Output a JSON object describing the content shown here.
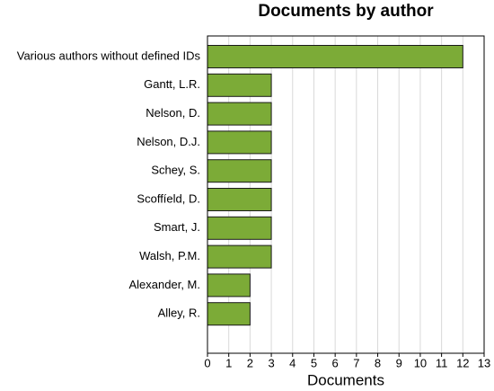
{
  "chart_data": {
    "type": "bar",
    "orientation": "horizontal",
    "title": "Documents by author",
    "x_label": "Documents",
    "categories": [
      "Various authors without defined IDs",
      "Gantt, L.R.",
      "Nelson, D.",
      "Nelson, D.J.",
      "Schey, S.",
      "Scoffíeld, D.",
      "Smart, J.",
      "Walsh, P.M.",
      "Alexander, M.",
      "Alley, R."
    ],
    "values": [
      12,
      3,
      3,
      3,
      3,
      3,
      3,
      3,
      2,
      2
    ],
    "color": "#7cab37",
    "xlim": [
      0,
      13
    ],
    "xticks": [
      0,
      1,
      2,
      3,
      4,
      5,
      6,
      7,
      8,
      9,
      10,
      11,
      12,
      13
    ],
    "grid": true
  }
}
